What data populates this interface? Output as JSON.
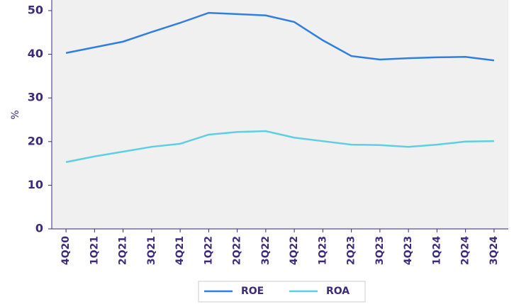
{
  "chart_data": {
    "type": "line",
    "categories": [
      "4Q20",
      "1Q21",
      "2Q21",
      "3Q21",
      "4Q21",
      "1Q22",
      "2Q22",
      "3Q22",
      "4Q22",
      "1Q23",
      "2Q23",
      "3Q23",
      "4Q23",
      "1Q24",
      "2Q24",
      "3Q24"
    ],
    "series": [
      {
        "name": "ROE",
        "color": "#2f7fe0",
        "values": [
          40.3,
          41.6,
          42.9,
          45.1,
          47.2,
          49.5,
          49.2,
          48.9,
          47.4,
          43.2,
          39.6,
          38.8,
          39.1,
          39.3,
          39.4,
          38.6
        ]
      },
      {
        "name": "ROA",
        "color": "#5ecfe0",
        "values": [
          15.3,
          16.6,
          17.7,
          18.8,
          19.5,
          21.6,
          22.2,
          22.4,
          20.9,
          20.1,
          19.3,
          19.2,
          18.8,
          19.3,
          20.0,
          20.1
        ]
      }
    ],
    "ylabel": "%",
    "ylim": [
      0,
      50
    ],
    "yticks": [
      0,
      10,
      20,
      30,
      40,
      50
    ],
    "legend": "bottom"
  }
}
